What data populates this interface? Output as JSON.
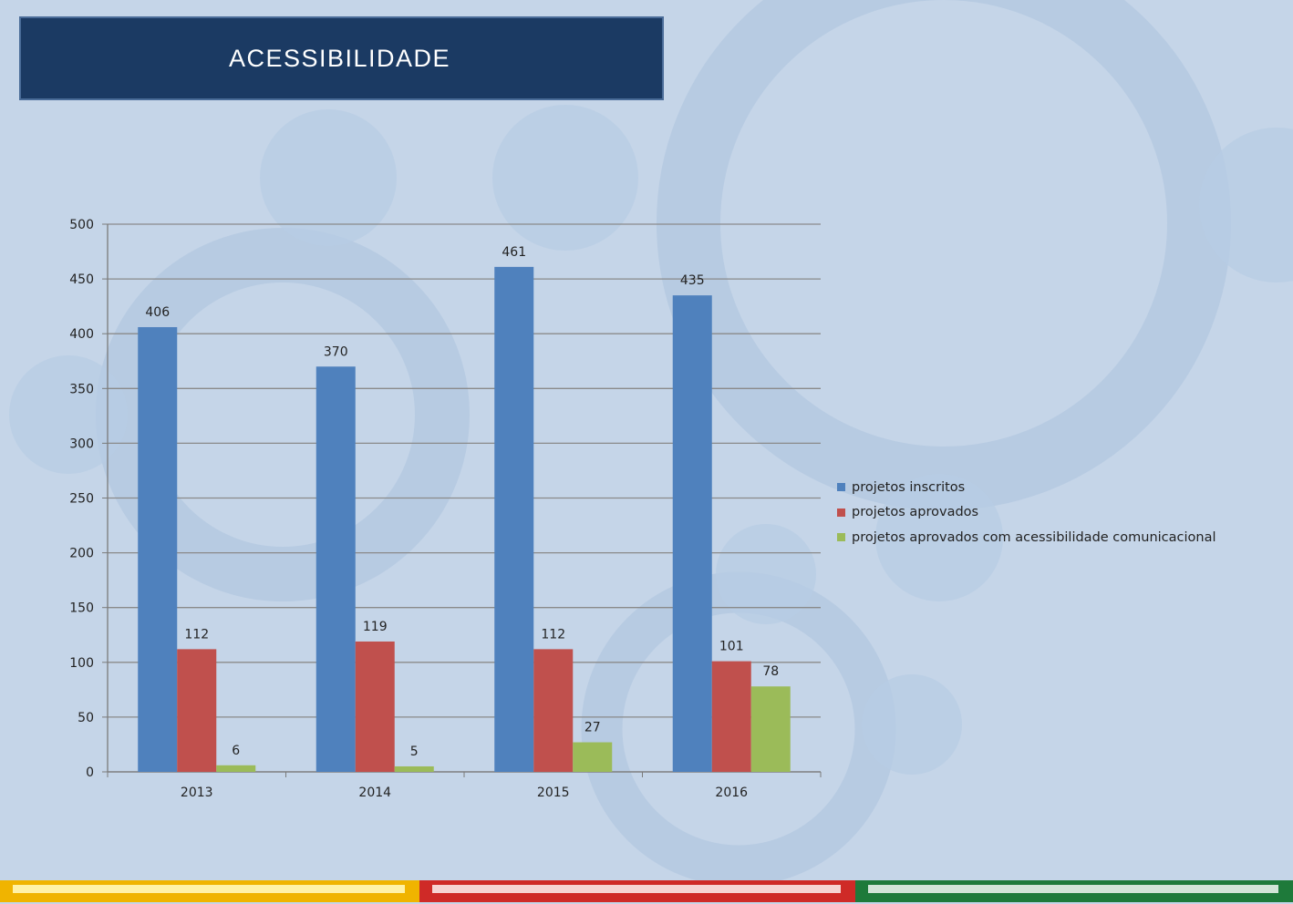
{
  "title": "ACESSIBILIDADE",
  "colors": {
    "background": "#c5d5e8",
    "title_bg": "#1b3a63",
    "series": [
      "#4f81bd",
      "#c0504d",
      "#9bbb59"
    ],
    "footer": [
      "#f0b400",
      "#cf2a27",
      "#1e7a3a"
    ]
  },
  "legend_position": "right",
  "chart_data": {
    "type": "bar",
    "categories": [
      "2013",
      "2014",
      "2015",
      "2016"
    ],
    "series": [
      {
        "name": "projetos inscritos",
        "values": [
          406,
          370,
          461,
          435
        ]
      },
      {
        "name": "projetos aprovados",
        "values": [
          112,
          119,
          112,
          101
        ]
      },
      {
        "name": "projetos aprovados com acessibilidade comunicacional",
        "values": [
          6,
          5,
          27,
          78
        ]
      }
    ],
    "ylim": [
      0,
      500
    ],
    "yticks": [
      0,
      50,
      100,
      150,
      200,
      250,
      300,
      350,
      400,
      450,
      500
    ],
    "grid": true,
    "xlabel": "",
    "ylabel": ""
  }
}
